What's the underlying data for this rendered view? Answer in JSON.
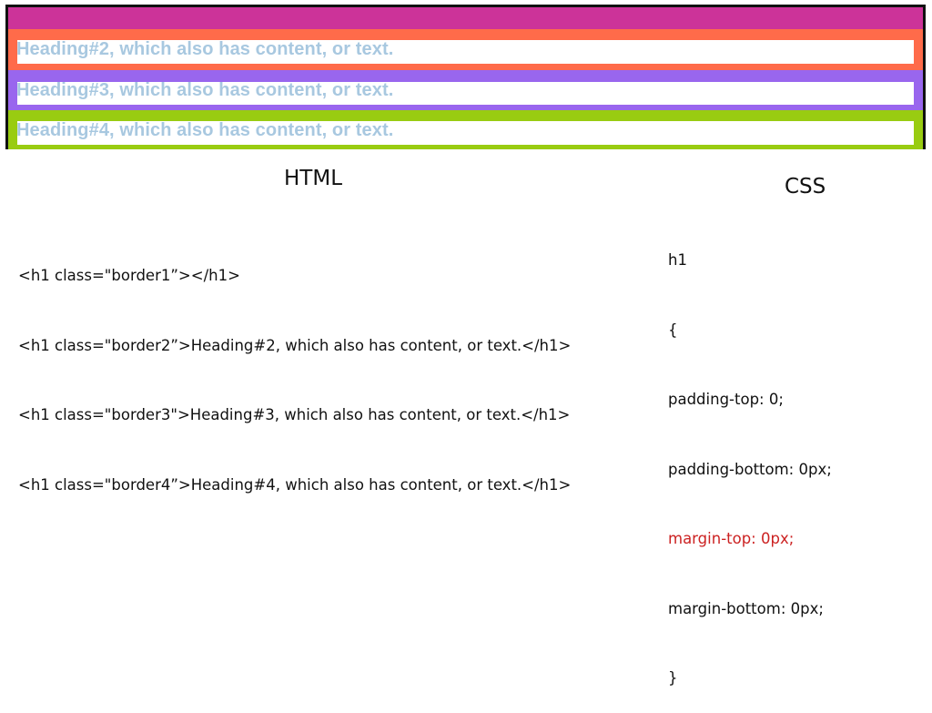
{
  "demo": {
    "bands": [
      {
        "class": "border1",
        "color": "#cc3399",
        "text": ""
      },
      {
        "class": "border2",
        "color": "#ff6b4a",
        "text": "Heading#2, which also has content, or text."
      },
      {
        "class": "border3",
        "color": "#9966ee",
        "text": "Heading#3, which also has content, or text."
      },
      {
        "class": "border4",
        "color": "#99cc11",
        "text": "Heading#4, which also has content, or text."
      }
    ],
    "heading_color": "#a8c8e0",
    "frame_color": "#111111"
  },
  "html_section": {
    "label": "HTML",
    "lines": [
      "<h1 class=\"border1”></h1>",
      "<h1 class=\"border2”>Heading#2, which also has content, or text.</h1>",
      "<h1 class=\"border3\">Heading#3, which also has content, or text.</h1>",
      "<h1 class=\"border4”>Heading#4, which also has content, or text.</h1>"
    ]
  },
  "css_section": {
    "label": "CSS",
    "lines": [
      "h1",
      "{",
      "padding-top: 0;",
      "padding-bottom: 0px;",
      "margin-top: 0px;",
      "margin-bottom: 0px;",
      "}"
    ],
    "highlight_color": "#cc2222"
  }
}
